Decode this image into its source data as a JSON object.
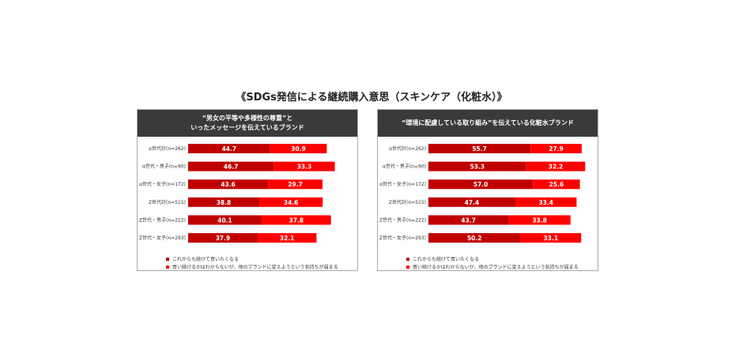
{
  "title": "《SDGs発信による継続購入意思（スキンケア（化粧水）》",
  "colors": {
    "series1": "#c00000",
    "series2": "#ff0000"
  },
  "legend": {
    "series1": "これからも続けて買いたくなる",
    "series2": "買い続けるかはわからないが、他のブランドに変えようという気持ちが弱まる"
  },
  "chart_data": [
    {
      "type": "bar",
      "orientation": "horizontal",
      "stacked": true,
      "title_line1": "“男女の平等や多様性の尊重”と",
      "title_line2": "いったメッセージを伝えているブランド",
      "categories": [
        "α世代計(n=262)",
        "α世代・男子(n=90)",
        "α世代・女子(n=172)",
        "Z世代計(n=515)",
        "Z世代・男子(n=222)",
        "Z世代・女子(n=293)"
      ],
      "series": [
        {
          "name": "これからも続けて買いたくなる",
          "values": [
            44.7,
            46.7,
            43.6,
            38.8,
            40.1,
            37.9
          ]
        },
        {
          "name": "買い続けるかはわからないが、他のブランドに変えようという気持ちが弱まる",
          "values": [
            30.9,
            33.3,
            29.7,
            34.6,
            37.8,
            32.1
          ]
        }
      ],
      "xlim": [
        0,
        100
      ],
      "legend_position": "bottom"
    },
    {
      "type": "bar",
      "orientation": "horizontal",
      "stacked": true,
      "title_line1": "“環境に配慮している取り組み”を伝えている化粧水ブランド",
      "title_line2": "",
      "categories": [
        "α世代計(n=262)",
        "α世代・男子(n=90)",
        "α世代・女子(n=172)",
        "Z世代計(n=515)",
        "Z世代・男子(n=222)",
        "Z世代・女子(n=293)"
      ],
      "series": [
        {
          "name": "これからも続けて買いたくなる",
          "values": [
            55.7,
            53.3,
            57.0,
            47.4,
            43.7,
            50.2
          ]
        },
        {
          "name": "買い続けるかはわからないが、他のブランドに変えようという気持ちが弱まる",
          "values": [
            27.9,
            32.2,
            25.6,
            33.4,
            33.8,
            33.1
          ]
        }
      ],
      "xlim": [
        0,
        100
      ],
      "legend_position": "bottom"
    }
  ]
}
